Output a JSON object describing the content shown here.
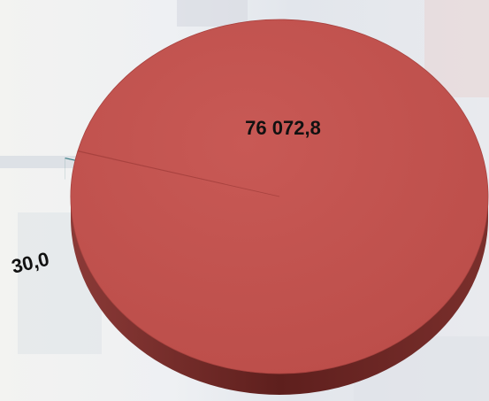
{
  "chart_data": {
    "type": "pie",
    "title": "",
    "categories": [
      "",
      ""
    ],
    "values": [
      76072.8,
      30.0
    ],
    "data_labels": [
      "76 072,8",
      "30,0"
    ],
    "colors": [
      "#c0504d",
      "#4f959c"
    ],
    "legend": "none",
    "style": "3d-exploded"
  }
}
